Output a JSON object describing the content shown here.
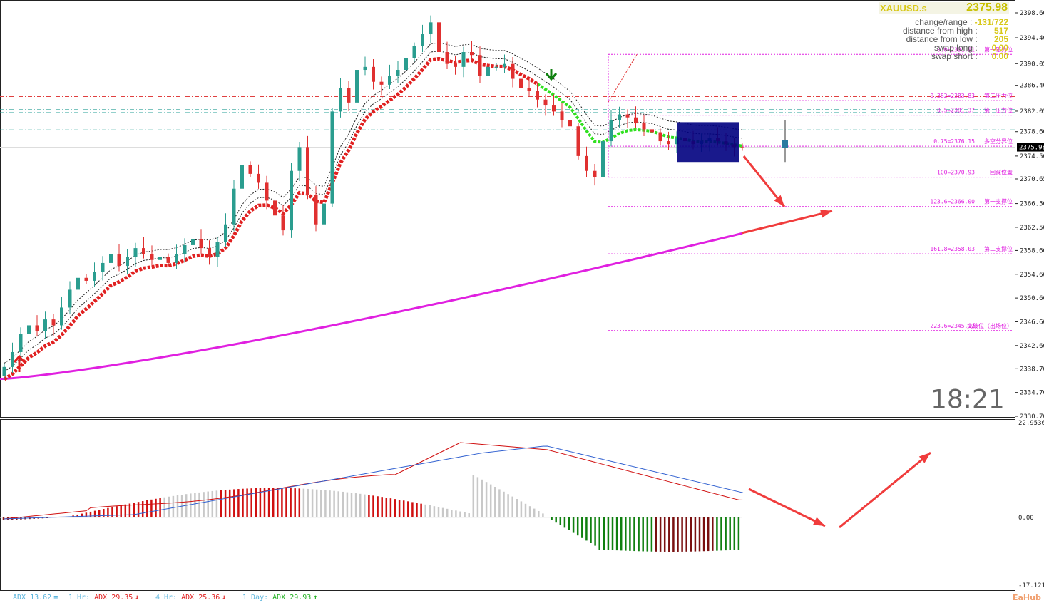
{
  "symbol": {
    "name": "XAUUSD.s",
    "price": "2375.98"
  },
  "info_panel": [
    {
      "label": "change/range :",
      "value": "-131/722"
    },
    {
      "label": "distance from high :",
      "value": "517"
    },
    {
      "label": "distance from low :",
      "value": "205"
    },
    {
      "label": "swap long :",
      "value": "0.00"
    },
    {
      "label": "swap short :",
      "value": "0.00"
    }
  ],
  "clock": "18:21",
  "colors": {
    "bull": "#2a9d8f",
    "bear": "#e03030",
    "ma_slow": "#e020e0",
    "fib": "#e020e0",
    "arrow": "#f03c3c"
  },
  "price_axis": {
    "labels": [
      "2398.60",
      "2394.40",
      "2390.05",
      "2386.40",
      "2382.05",
      "2378.60",
      "2374.50",
      "2370.65",
      "2366.50",
      "2362.50",
      "2358.60",
      "2354.60",
      "2350.60",
      "2346.60",
      "2342.60",
      "2338.70",
      "2334.70",
      "2330.70"
    ],
    "current": "2375.98"
  },
  "osc_axis": {
    "labels": [
      "22.9536",
      "0.00",
      "-17.1215"
    ]
  },
  "fib_levels": [
    {
      "label": "0.0=2391.61",
      "note": "第一压力位"
    },
    {
      "label": "0.382=2383.83",
      "note": "第二压力位"
    },
    {
      "label": "0.5=2381.37",
      "note": "第一压力位"
    },
    {
      "label": "0.75=2376.15",
      "note": "多空分界位"
    },
    {
      "label": "100=2370.93",
      "note": "回踩位置"
    },
    {
      "label": "123.6=2366.00",
      "note": "第一支撑位"
    },
    {
      "label": "161.8=2358.03",
      "note": "第二支撑位"
    },
    {
      "label": "223.6=2345.12",
      "note": "突破位（出场位）"
    }
  ],
  "adx_bar": [
    {
      "tf": "",
      "label": "ADX 13.62",
      "arrow": "=",
      "color": "#5ab4dc"
    },
    {
      "tf": "1 Hr:",
      "label": "ADX 29.35",
      "arrow": "↓",
      "color": "#e02020"
    },
    {
      "tf": "4 Hr:",
      "label": "ADX 25.36",
      "arrow": "↓",
      "color": "#e02020"
    },
    {
      "tf": "1 Day:",
      "label": "ADX 29.93",
      "arrow": "↑",
      "color": "#20b020"
    }
  ],
  "watermark": "EaHub",
  "chart_data": {
    "type": "candlestick",
    "symbol": "XAUUSD.s",
    "ylim": [
      2330.7,
      2400.0
    ],
    "closes": [
      2339.0,
      2341.5,
      2344.5,
      2346.0,
      2345.0,
      2347.0,
      2346.0,
      2349.0,
      2352.0,
      2354.0,
      2353.5,
      2355.0,
      2356.5,
      2358.0,
      2356.0,
      2357.5,
      2359.0,
      2358.0,
      2357.0,
      2357.5,
      2356.5,
      2358.0,
      2359.5,
      2360.5,
      2359.0,
      2357.5,
      2360.0,
      2363.0,
      2369.0,
      2373.0,
      2371.5,
      2370.0,
      2367.0,
      2364.5,
      2362.0,
      2372.0,
      2376.0,
      2368.0,
      2363.0,
      2366.5,
      2382.0,
      2386.0,
      2383.5,
      2389.0,
      2389.5,
      2387.0,
      2386.5,
      2388.0,
      2389.0,
      2391.0,
      2393.0,
      2395.0,
      2397.0,
      2392.0,
      2390.0,
      2389.5,
      2392.0,
      2391.5,
      2388.0,
      2389.5,
      2389.5,
      2390.0,
      2387.5,
      2386.0,
      2385.5,
      2384.0,
      2383.0,
      2382.0,
      2380.5,
      2379.5,
      2374.5,
      2372.0,
      2371.0,
      2377.0,
      2380.5,
      2381.5,
      2381.0,
      2380.0,
      2379.0,
      2378.5,
      2377.0,
      2376.5,
      2377.5,
      2377.0,
      2376.5,
      2377.0,
      2377.5,
      2377.0,
      2376.5,
      2376.0,
      2375.98
    ],
    "ma_slow_end": 2361.5,
    "fib_levels": [
      {
        "ratio": "0.0",
        "price": 2391.61,
        "label": "0.0=2391.61"
      },
      {
        "ratio": "0.382",
        "price": 2383.83,
        "label": "0.382=2383.83"
      },
      {
        "ratio": "0.5",
        "price": 2381.37,
        "label": "0.5=2381.37"
      },
      {
        "ratio": "0.75",
        "price": 2376.15,
        "label": "0.75=2376.15"
      },
      {
        "ratio": "100",
        "price": 2370.93,
        "label": "100=2370.93"
      },
      {
        "ratio": "123.6",
        "price": 2366.0,
        "label": "123.6=2366.00"
      },
      {
        "ratio": "161.8",
        "price": 2358.03,
        "label": "161.8=2358.03"
      },
      {
        "ratio": "223.6",
        "price": 2345.12,
        "label": "223.6=2345.12"
      }
    ],
    "oscillator": {
      "ylim": [
        -17.1215,
        22.9536
      ]
    }
  }
}
